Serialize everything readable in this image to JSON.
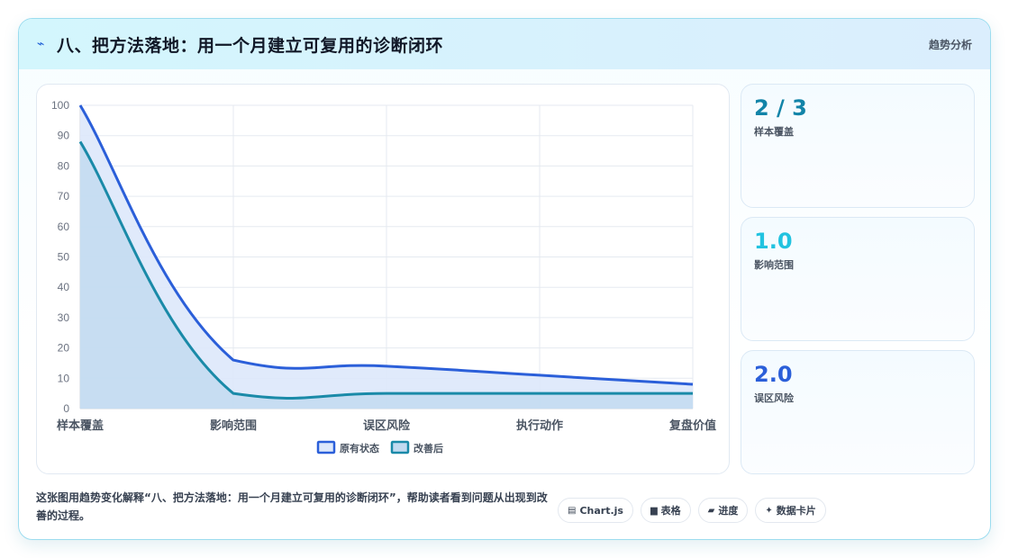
{
  "header": {
    "title": "八、把方法落地：用一个月建立可复用的诊断闭环",
    "tag": "趋势分析",
    "icon": "lightning-icon"
  },
  "chart_data": {
    "type": "area",
    "categories": [
      "样本覆盖",
      "影响范围",
      "误区风险",
      "执行动作",
      "复盘价值"
    ],
    "series": [
      {
        "name": "原有状态",
        "values": [
          100,
          16,
          14,
          11,
          8
        ],
        "color": "#2b5fd9",
        "fill": "#dde8fb"
      },
      {
        "name": "改善后",
        "values": [
          88,
          5,
          5,
          5,
          5
        ],
        "color": "#1a8aa8",
        "fill": "#c2dbf0"
      }
    ],
    "ylim": [
      0,
      100
    ],
    "yticks": [
      "0",
      "10",
      "20",
      "30",
      "40",
      "50",
      "60",
      "70",
      "80",
      "90",
      "100"
    ],
    "grid": true,
    "legend_position": "bottom"
  },
  "stats": [
    {
      "value": "2 / 3",
      "label": "样本覆盖",
      "color": "#1284a8"
    },
    {
      "value": "1.0",
      "label": "影响范围",
      "color": "#22c3e0"
    },
    {
      "value": "2.0",
      "label": "误区风险",
      "color": "#2b5fd9"
    }
  ],
  "footer": {
    "description": "这张图用趋势变化解释“八、把方法落地：用一个月建立可复用的诊断闭环”，帮助读者看到问题从出现到改善的过程。",
    "pills": [
      {
        "label": "Chart.js",
        "icon": "chart-icon",
        "glyph": "▤"
      },
      {
        "label": "表格",
        "icon": "table-icon",
        "glyph": "▆"
      },
      {
        "label": "进度",
        "icon": "progress-icon",
        "glyph": "▰"
      },
      {
        "label": "数据卡片",
        "icon": "sparkle-icon",
        "glyph": "✦"
      }
    ]
  }
}
